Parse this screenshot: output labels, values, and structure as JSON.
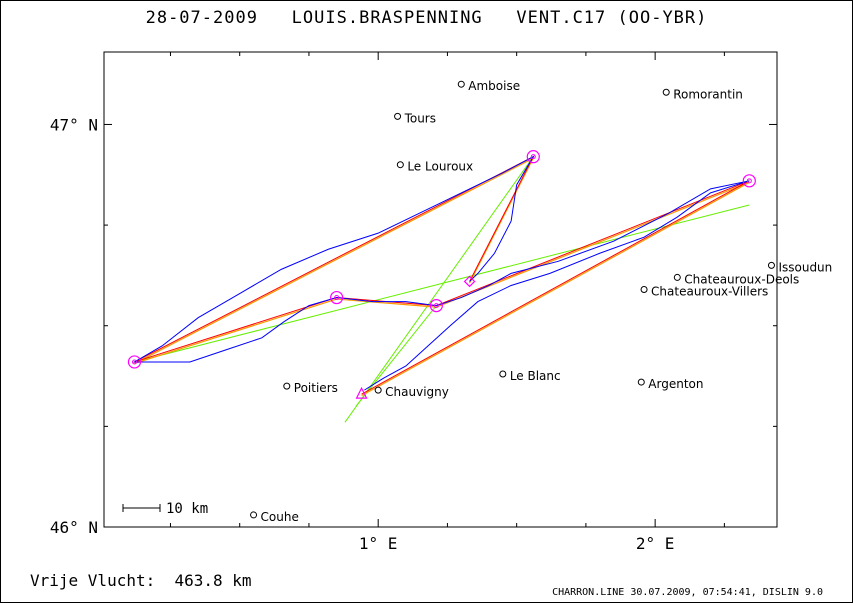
{
  "header": {
    "date": "28-07-2009",
    "pilot": "LOUIS.BRASPENNING",
    "glider": "VENT.C17 (OO-YBR)"
  },
  "footer": {
    "distance_label": "Vrije Vlucht:",
    "distance_value": "463.8 km",
    "software": "CHARRON.LINE 30.07.2009, 07:54:41, DISLIN 9.0"
  },
  "colors": {
    "track": "#0000ff",
    "task": "#ff0000",
    "optimized": "#ff9900",
    "sector_lines": "#66ee00",
    "turnpoints": "#ff00ff",
    "axes": "#000000"
  },
  "chart_data": {
    "type": "map-track",
    "x_axis": {
      "unit": "longitude",
      "ticks": [
        {
          "value": 1.0,
          "label": "1° E"
        },
        {
          "value": 2.0,
          "label": "2° E"
        }
      ],
      "range": [
        0.01,
        2.44
      ]
    },
    "y_axis": {
      "unit": "latitude",
      "ticks": [
        {
          "value": 46.0,
          "label": "46° N"
        },
        {
          "value": 47.0,
          "label": "47° N"
        }
      ],
      "range": [
        46.0,
        47.18
      ]
    },
    "scale_bar": {
      "label": "10 km"
    },
    "towns": [
      {
        "name": "Amboise",
        "lon": 1.3,
        "lat": 47.1
      },
      {
        "name": "Romorantin",
        "lon": 2.04,
        "lat": 47.08
      },
      {
        "name": "Tours",
        "lon": 1.07,
        "lat": 47.02
      },
      {
        "name": "Le Louroux",
        "lon": 1.08,
        "lat": 46.9
      },
      {
        "name": "Issoudun",
        "lon": 2.42,
        "lat": 46.65
      },
      {
        "name": "Chateauroux-Deols",
        "lon": 2.08,
        "lat": 46.62
      },
      {
        "name": "Chateauroux-Villers",
        "lon": 1.96,
        "lat": 46.59
      },
      {
        "name": "Poitiers",
        "lon": 0.67,
        "lat": 46.35
      },
      {
        "name": "Le Blanc",
        "lon": 1.45,
        "lat": 46.38
      },
      {
        "name": "Argenton",
        "lon": 1.95,
        "lat": 46.36
      },
      {
        "name": "Chauvigny",
        "lon": 1.0,
        "lat": 46.34
      },
      {
        "name": "Couhe",
        "lon": 0.55,
        "lat": 46.03
      }
    ],
    "turnpoints": [
      {
        "lon": 0.12,
        "lat": 46.41
      },
      {
        "lon": 1.56,
        "lat": 46.92
      },
      {
        "lon": 2.34,
        "lat": 46.86
      },
      {
        "lon": 0.85,
        "lat": 46.57
      },
      {
        "lon": 1.21,
        "lat": 46.55
      }
    ],
    "start": {
      "lon": 0.94,
      "lat": 46.33
    },
    "finish": {
      "lon": 1.33,
      "lat": 46.61
    },
    "task_route": [
      {
        "lon": 0.94,
        "lat": 46.33
      },
      {
        "lon": 2.34,
        "lat": 46.86
      },
      {
        "lon": 1.21,
        "lat": 46.55
      },
      {
        "lon": 0.85,
        "lat": 46.57
      },
      {
        "lon": 0.12,
        "lat": 46.41
      },
      {
        "lon": 1.56,
        "lat": 46.92
      },
      {
        "lon": 1.33,
        "lat": 46.61
      }
    ],
    "sector_lines": [
      [
        {
          "lon": 0.12,
          "lat": 46.41
        },
        {
          "lon": 2.34,
          "lat": 46.8
        }
      ],
      [
        {
          "lon": 1.56,
          "lat": 46.92
        },
        {
          "lon": 0.88,
          "lat": 46.26
        }
      ],
      [
        {
          "lon": 1.21,
          "lat": 46.55
        },
        {
          "lon": 0.92,
          "lat": 46.3
        }
      ]
    ],
    "track": [
      {
        "lon": 0.95,
        "lat": 46.34
      },
      {
        "lon": 1.02,
        "lat": 46.37
      },
      {
        "lon": 1.1,
        "lat": 46.4
      },
      {
        "lon": 1.18,
        "lat": 46.45
      },
      {
        "lon": 1.26,
        "lat": 46.5
      },
      {
        "lon": 1.36,
        "lat": 46.56
      },
      {
        "lon": 1.48,
        "lat": 46.6
      },
      {
        "lon": 1.62,
        "lat": 46.63
      },
      {
        "lon": 1.8,
        "lat": 46.68
      },
      {
        "lon": 1.96,
        "lat": 46.72
      },
      {
        "lon": 2.08,
        "lat": 46.77
      },
      {
        "lon": 2.2,
        "lat": 46.83
      },
      {
        "lon": 2.34,
        "lat": 46.86
      },
      {
        "lon": 2.2,
        "lat": 46.84
      },
      {
        "lon": 2.05,
        "lat": 46.78
      },
      {
        "lon": 1.85,
        "lat": 46.71
      },
      {
        "lon": 1.65,
        "lat": 46.66
      },
      {
        "lon": 1.48,
        "lat": 46.63
      },
      {
        "lon": 1.4,
        "lat": 46.6
      },
      {
        "lon": 1.3,
        "lat": 46.57
      },
      {
        "lon": 1.21,
        "lat": 46.55
      },
      {
        "lon": 1.1,
        "lat": 46.56
      },
      {
        "lon": 0.98,
        "lat": 46.56
      },
      {
        "lon": 0.85,
        "lat": 46.57
      },
      {
        "lon": 0.75,
        "lat": 46.55
      },
      {
        "lon": 0.66,
        "lat": 46.51
      },
      {
        "lon": 0.58,
        "lat": 46.47
      },
      {
        "lon": 0.45,
        "lat": 46.44
      },
      {
        "lon": 0.32,
        "lat": 46.41
      },
      {
        "lon": 0.2,
        "lat": 46.41
      },
      {
        "lon": 0.12,
        "lat": 46.41
      },
      {
        "lon": 0.22,
        "lat": 46.45
      },
      {
        "lon": 0.35,
        "lat": 46.52
      },
      {
        "lon": 0.5,
        "lat": 46.58
      },
      {
        "lon": 0.65,
        "lat": 46.64
      },
      {
        "lon": 0.82,
        "lat": 46.69
      },
      {
        "lon": 1.0,
        "lat": 46.73
      },
      {
        "lon": 1.15,
        "lat": 46.78
      },
      {
        "lon": 1.3,
        "lat": 46.83
      },
      {
        "lon": 1.45,
        "lat": 46.88
      },
      {
        "lon": 1.56,
        "lat": 46.92
      },
      {
        "lon": 1.5,
        "lat": 46.85
      },
      {
        "lon": 1.48,
        "lat": 46.76
      },
      {
        "lon": 1.42,
        "lat": 46.68
      },
      {
        "lon": 1.36,
        "lat": 46.63
      },
      {
        "lon": 1.33,
        "lat": 46.61
      }
    ]
  }
}
